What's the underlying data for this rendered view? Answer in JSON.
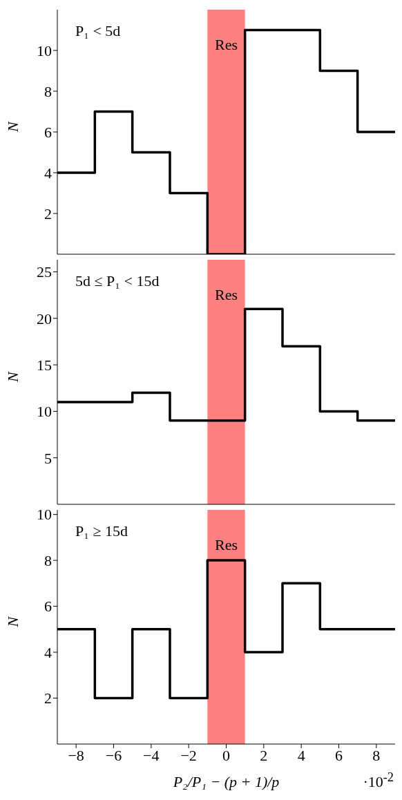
{
  "chart_data": [
    {
      "type": "step",
      "x": [
        -9,
        -7,
        -5,
        -3,
        -1,
        1,
        3,
        5,
        7,
        9
      ],
      "values": [
        4,
        7,
        5,
        3,
        0,
        11,
        11,
        9,
        6,
        6
      ],
      "color": "#000000",
      "xlim": [
        -9,
        9
      ],
      "xticks": [
        -8,
        -6,
        -4,
        -2,
        0,
        2,
        4,
        6,
        8
      ],
      "ylim": [
        0,
        12
      ],
      "yticks": [
        2,
        4,
        6,
        8,
        10
      ],
      "ylabel": "N",
      "tick_labels": "y",
      "marker": "none",
      "annotations": [
        "P₁ < 5d"
      ],
      "bands": [
        {
          "axis": "x",
          "from": -1,
          "to": 1,
          "label": "Res",
          "color": "#ff8080"
        }
      ]
    },
    {
      "type": "step",
      "x": [
        -9,
        -7,
        -5,
        -3,
        -1,
        1,
        3,
        5,
        7,
        9
      ],
      "values": [
        11,
        11,
        12,
        9,
        9,
        21,
        17,
        10,
        9,
        9
      ],
      "color": "#000000",
      "xlim": [
        -9,
        9
      ],
      "xticks": [
        -8,
        -6,
        -4,
        -2,
        0,
        2,
        4,
        6,
        8
      ],
      "ylim": [
        0,
        26.3
      ],
      "yticks": [
        5,
        10,
        15,
        20,
        25
      ],
      "ylabel": "N",
      "tick_labels": "y",
      "marker": "none",
      "annotations": [
        "5d ≤ P₁ < 15d"
      ],
      "bands": [
        {
          "axis": "x",
          "from": -1,
          "to": 1,
          "label": "Res",
          "color": "#ff8080"
        }
      ]
    },
    {
      "type": "step",
      "x": [
        -9,
        -7,
        -5,
        -3,
        -1,
        1,
        3,
        5,
        7,
        9
      ],
      "values": [
        5,
        2,
        5,
        2,
        8,
        4,
        7,
        5,
        5,
        5
      ],
      "color": "#000000",
      "xlim": [
        -9,
        9
      ],
      "xticks": [
        {
          "value": -8,
          "label": "−8"
        },
        {
          "value": -6,
          "label": "−6"
        },
        {
          "value": -4,
          "label": "−4"
        },
        {
          "value": -2,
          "label": "−2"
        },
        0,
        2,
        4,
        6,
        8
      ],
      "ylim": [
        0,
        10.2
      ],
      "yticks": [
        2,
        4,
        6,
        8,
        10
      ],
      "xlabel": "P₂/P₁ − (p + 1)/p",
      "ylabel": "N",
      "marker": "none",
      "annotations": [
        "P₁ ≥ 15d",
        "·10$^{-2}$"
      ],
      "bands": [
        {
          "axis": "x",
          "from": -1,
          "to": 1,
          "label": "Res",
          "color": "#ff8080"
        }
      ]
    }
  ]
}
